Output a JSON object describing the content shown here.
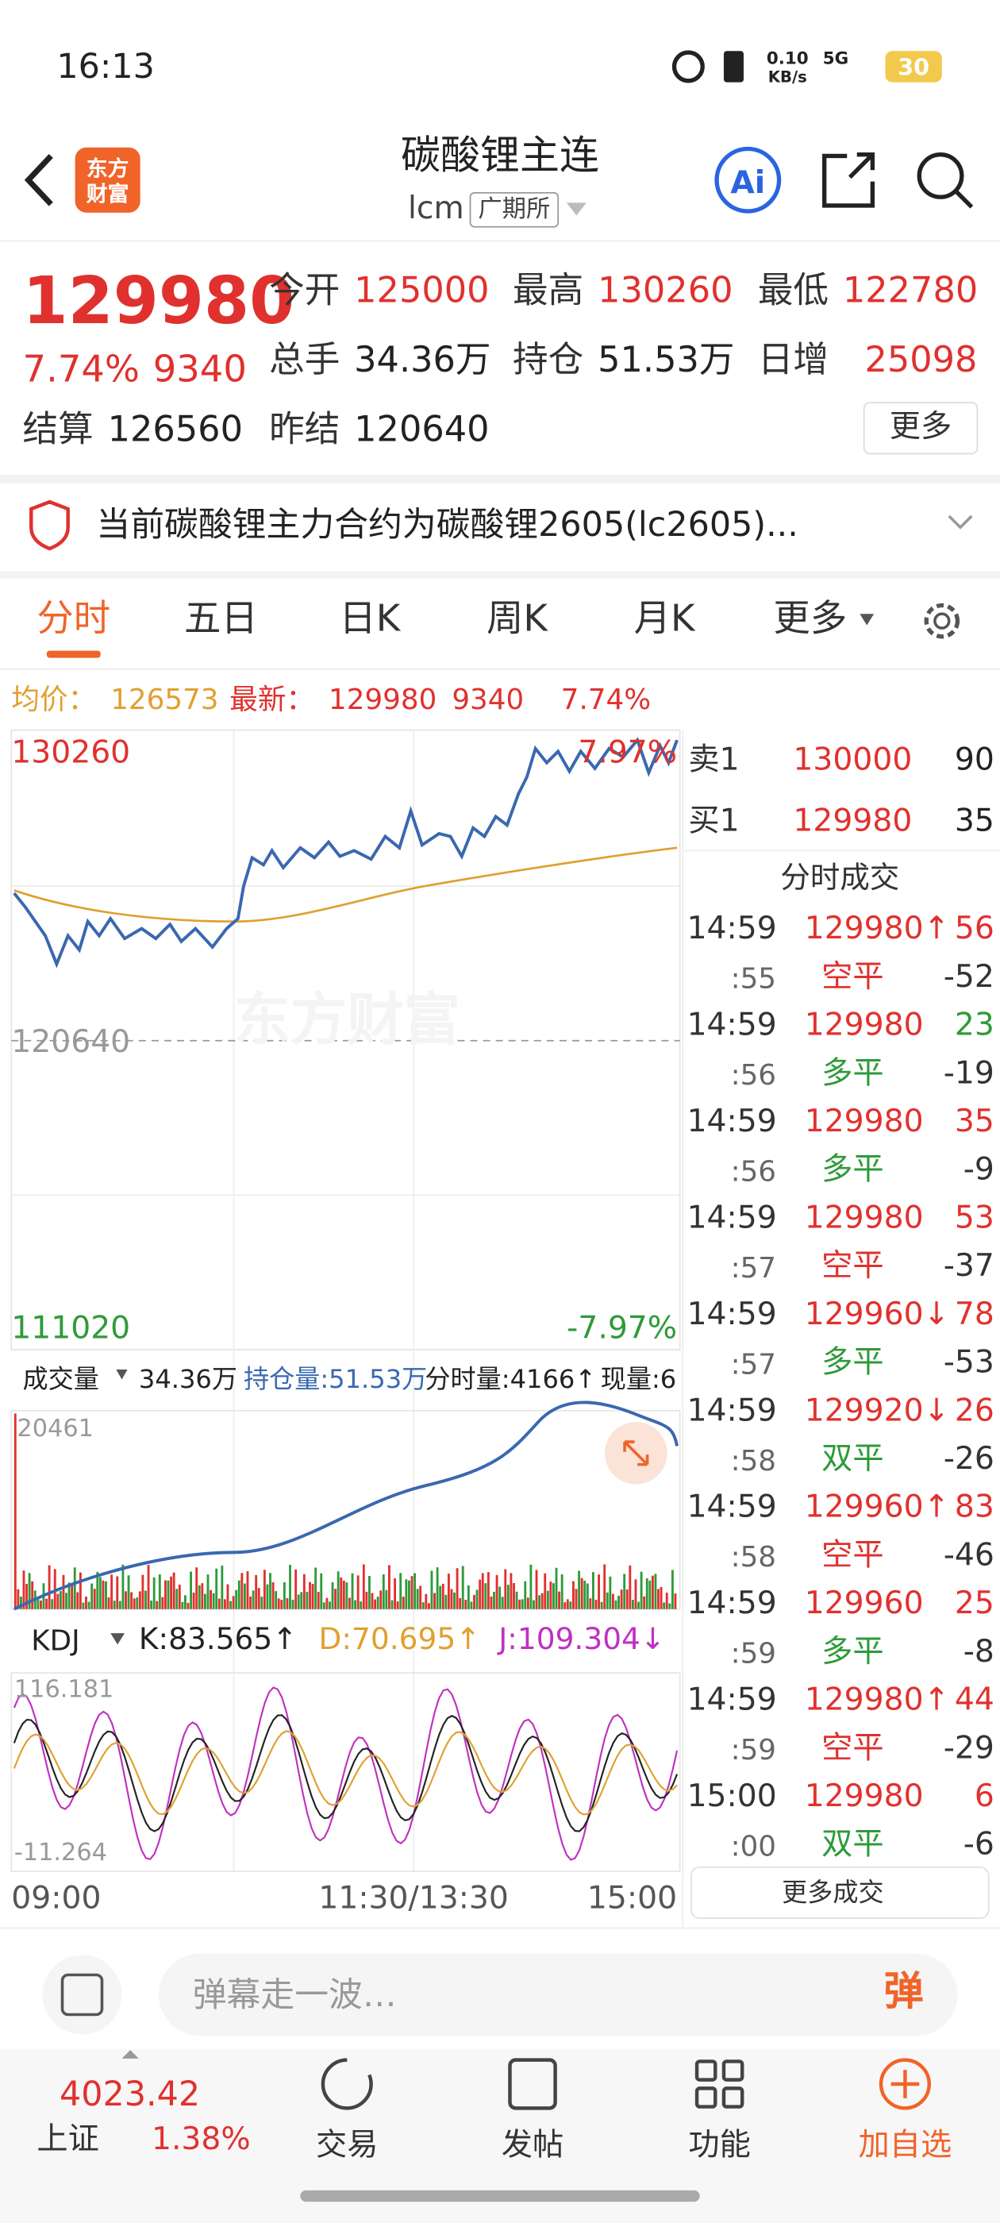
{
  "status_bar": {
    "time": "16:13",
    "net_speed": "0.10",
    "net_unit": "KB/s",
    "network": "5G",
    "battery": "30"
  },
  "header": {
    "logo": "东方财富",
    "title": "碳酸锂主连",
    "code": "lcm",
    "exchange": "广期所"
  },
  "quote": {
    "price": "129980",
    "change_pct": "7.74%",
    "change": "9340",
    "fields": [
      {
        "label": "今开",
        "value": "125000"
      },
      {
        "label": "最高",
        "value": "130260"
      },
      {
        "label": "最低",
        "value": "122780"
      },
      {
        "label": "总手",
        "value": "34.36万"
      },
      {
        "label": "持仓",
        "value": "51.53万"
      },
      {
        "label": "日增",
        "value": "25098"
      },
      {
        "label": "结算",
        "value": "126560"
      },
      {
        "label": "昨结",
        "value": "120640"
      }
    ],
    "more": "更多"
  },
  "notice": "当前碳酸锂主力合约为碳酸锂2605(lc2605)...",
  "tabs": [
    "分时",
    "五日",
    "日K",
    "周K",
    "月K",
    "更多"
  ],
  "info": {
    "avg_label": "均价：",
    "avg": "126573",
    "last_label": "最新：",
    "last": "129980",
    "change": "9340",
    "change_pct": "7.74%"
  },
  "price_chart": {
    "high": "130260",
    "high_pct": "7.97%",
    "ref": "120640",
    "low": "111020",
    "low_pct": "-7.97%",
    "watermark": "东方财富"
  },
  "volume": {
    "selector": "成交量",
    "total": "34.36万",
    "open_interest": "持仓量:51.53万",
    "tick_volume": "分时量:4166↑",
    "current": "现量:6",
    "max": "20461"
  },
  "kdj": {
    "selector": "KDJ",
    "k": "K:83.565↑",
    "d": "D:70.695↑",
    "j": "J:109.304↓",
    "max": "116.181",
    "min": "-11.264"
  },
  "time_axis": [
    "09:00",
    "11:30/13:30",
    "15:00"
  ],
  "order_book": [
    {
      "side": "卖1",
      "price": "130000",
      "volume": "90"
    },
    {
      "side": "买1",
      "price": "129980",
      "volume": "35"
    }
  ],
  "trades": {
    "title": "分时成交",
    "rows": [
      {
        "time": "14:59",
        "second": ":55",
        "price": "129980↑",
        "volume": "56",
        "volume_color": "#e0312e",
        "type": "空平",
        "type_color": "#e0312e",
        "change": "-52"
      },
      {
        "time": "14:59",
        "second": ":56",
        "price": "129980",
        "volume": "23",
        "volume_color": "#2f9a3a",
        "type": "多平",
        "type_color": "#2f9a3a",
        "change": "-19"
      },
      {
        "time": "14:59",
        "second": ":56",
        "price": "129980",
        "volume": "35",
        "volume_color": "#e0312e",
        "type": "多平",
        "type_color": "#2f9a3a",
        "change": "-9"
      },
      {
        "time": "14:59",
        "second": ":57",
        "price": "129980",
        "volume": "53",
        "volume_color": "#e0312e",
        "type": "空平",
        "type_color": "#e0312e",
        "change": "-37"
      },
      {
        "time": "14:59",
        "second": ":57",
        "price": "129960↓",
        "volume": "78",
        "volume_color": "#e0312e",
        "type": "多平",
        "type_color": "#2f9a3a",
        "change": "-53"
      },
      {
        "time": "14:59",
        "second": ":58",
        "price": "129920↓",
        "volume": "26",
        "volume_color": "#e0312e",
        "type": "双平",
        "type_color": "#2f9a3a",
        "change": "-26"
      },
      {
        "time": "14:59",
        "second": ":58",
        "price": "129960↑",
        "volume": "83",
        "volume_color": "#e0312e",
        "type": "空平",
        "type_color": "#e0312e",
        "change": "-46"
      },
      {
        "time": "14:59",
        "second": ":59",
        "price": "129960",
        "volume": "25",
        "volume_color": "#e0312e",
        "type": "多平",
        "type_color": "#2f9a3a",
        "change": "-8"
      },
      {
        "time": "14:59",
        "second": ":59",
        "price": "129980↑",
        "volume": "44",
        "volume_color": "#e0312e",
        "type": "空平",
        "type_color": "#e0312e",
        "change": "-29"
      },
      {
        "time": "15:00",
        "second": ":00",
        "price": "129980",
        "volume": "6",
        "volume_color": "#e0312e",
        "type": "双平",
        "type_color": "#2f9a3a",
        "change": "-6"
      }
    ],
    "more": "更多成交"
  },
  "comment": {
    "placeholder": "弹幕走一波…",
    "danmaku": "弹"
  },
  "bottom_nav": {
    "index_value": "4023.42",
    "index_name": "上证",
    "index_pct": "1.38%",
    "items": [
      "交易",
      "发帖",
      "功能",
      "加自选"
    ]
  }
}
